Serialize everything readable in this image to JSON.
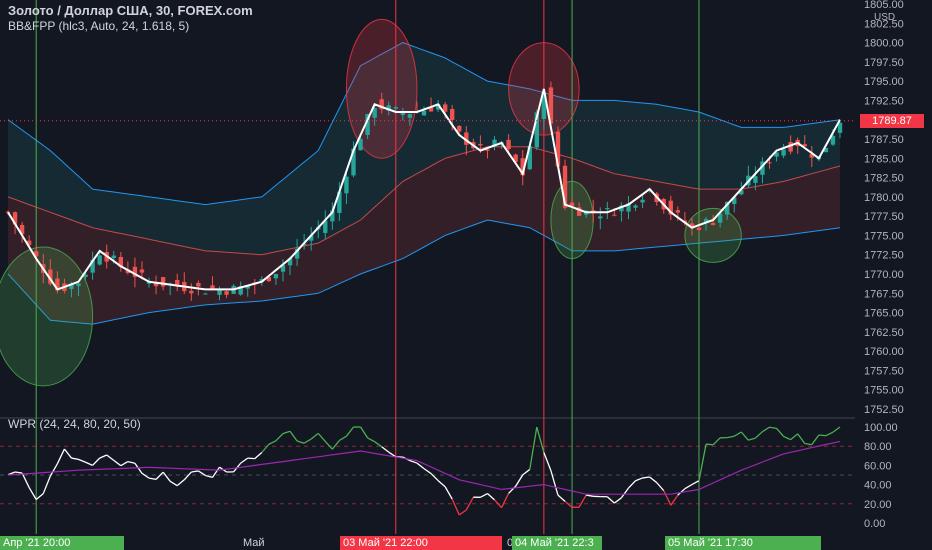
{
  "header": {
    "symbol_title": "Золото / Доллар США, 30, FOREX.com",
    "indicator_main": "BB&FPP (hlc3, Auto, 24, 1.618, 5)",
    "indicator_sub": "WPR (24, 24, 80, 20, 50)"
  },
  "price_axis": {
    "currency": "USD",
    "current_price": "1789.87"
  },
  "time_axis": {
    "labels": [
      {
        "text": "Апр '21  20:00",
        "style": "g"
      },
      {
        "text": "Май",
        "style": "n"
      },
      {
        "text": "03 Май '21   22:00",
        "style": "r"
      },
      {
        "text": "0",
        "style": "n"
      },
      {
        "text": "04 Май '21   22:3",
        "style": "g"
      },
      {
        "text": "05 Май '21    17:30",
        "style": "g"
      }
    ]
  },
  "colors": {
    "background": "#131722",
    "bull": "#26a69a",
    "bear": "#ef5350",
    "band": "#2196f3",
    "mid": "#ef5350",
    "hlc": "#ffffff",
    "wpr_ma": "#9c27b0"
  },
  "chart_data": [
    {
      "type": "candlestick",
      "title": "Золото / Доллар США, 30, FOREX.com",
      "ylabel": "USD",
      "ylim": [
        1752.5,
        1805.0
      ],
      "yticks": [
        1752.5,
        1755.0,
        1757.5,
        1760.0,
        1762.5,
        1765.0,
        1767.5,
        1770.0,
        1772.5,
        1775.0,
        1777.5,
        1780.0,
        1782.5,
        1785.0,
        1787.5,
        1790.0,
        1792.5,
        1795.0,
        1797.5,
        1800.0,
        1802.5,
        1805.0
      ],
      "ytick_labels": [
        "1752.50",
        "1755.00",
        "1757.50",
        "1760.00",
        "1762.50",
        "1765.00",
        "1767.50",
        "1770.00",
        "1772.50",
        "1775.00",
        "1777.50",
        "1780.00",
        "1782.50",
        "1785.00",
        "1787.50",
        "1790.00",
        "1792.50",
        "1795.00",
        "1797.50",
        "1800.00",
        "1802.50",
        "1805.00"
      ],
      "last_price": 1789.87,
      "close_anchors": [
        [
          0,
          1778
        ],
        [
          4,
          1772
        ],
        [
          7,
          1768
        ],
        [
          10,
          1769
        ],
        [
          13,
          1773
        ],
        [
          16,
          1771
        ],
        [
          20,
          1769
        ],
        [
          24,
          1768.5
        ],
        [
          28,
          1768
        ],
        [
          32,
          1768
        ],
        [
          36,
          1769
        ],
        [
          40,
          1772
        ],
        [
          43,
          1775
        ],
        [
          46,
          1778
        ],
        [
          49,
          1786
        ],
        [
          52,
          1792
        ],
        [
          55,
          1791
        ],
        [
          58,
          1791
        ],
        [
          61,
          1792
        ],
        [
          64,
          1788
        ],
        [
          67,
          1786
        ],
        [
          70,
          1787
        ],
        [
          73,
          1783
        ],
        [
          76,
          1794
        ],
        [
          79,
          1779
        ],
        [
          82,
          1778
        ],
        [
          85,
          1778
        ],
        [
          88,
          1779
        ],
        [
          91,
          1781
        ],
        [
          94,
          1778
        ],
        [
          97,
          1776
        ],
        [
          100,
          1777
        ],
        [
          103,
          1780
        ],
        [
          106,
          1783
        ],
        [
          109,
          1786
        ],
        [
          112,
          1787
        ],
        [
          115,
          1785
        ],
        [
          118,
          1790
        ]
      ],
      "bands_upper": [
        [
          0,
          1790
        ],
        [
          6,
          1786
        ],
        [
          12,
          1781
        ],
        [
          20,
          1780
        ],
        [
          28,
          1779
        ],
        [
          36,
          1780
        ],
        [
          44,
          1786
        ],
        [
          50,
          1797
        ],
        [
          56,
          1800
        ],
        [
          62,
          1798
        ],
        [
          68,
          1795
        ],
        [
          74,
          1794
        ],
        [
          80,
          1792.5
        ],
        [
          86,
          1792.5
        ],
        [
          92,
          1792
        ],
        [
          98,
          1791
        ],
        [
          104,
          1789
        ],
        [
          110,
          1789
        ],
        [
          118,
          1790
        ]
      ],
      "bands_middle": [
        [
          0,
          1780
        ],
        [
          6,
          1778
        ],
        [
          12,
          1776
        ],
        [
          20,
          1774.5
        ],
        [
          28,
          1773
        ],
        [
          36,
          1772.5
        ],
        [
          44,
          1774
        ],
        [
          50,
          1777
        ],
        [
          56,
          1782
        ],
        [
          62,
          1785
        ],
        [
          68,
          1786.5
        ],
        [
          74,
          1786.5
        ],
        [
          80,
          1785
        ],
        [
          86,
          1783
        ],
        [
          92,
          1782
        ],
        [
          98,
          1781
        ],
        [
          104,
          1781
        ],
        [
          110,
          1782
        ],
        [
          118,
          1784
        ]
      ],
      "bands_lower": [
        [
          0,
          1770
        ],
        [
          6,
          1764
        ],
        [
          12,
          1763.5
        ],
        [
          20,
          1765
        ],
        [
          28,
          1766
        ],
        [
          36,
          1766.5
        ],
        [
          44,
          1767.5
        ],
        [
          50,
          1770
        ],
        [
          56,
          1772
        ],
        [
          62,
          1775
        ],
        [
          68,
          1777
        ],
        [
          74,
          1776
        ],
        [
          80,
          1773
        ],
        [
          86,
          1773
        ],
        [
          92,
          1773.5
        ],
        [
          98,
          1774
        ],
        [
          104,
          1774.5
        ],
        [
          110,
          1775
        ],
        [
          118,
          1776
        ]
      ],
      "highlight_ellipses": [
        {
          "color": "green",
          "cx": 5,
          "cy": 1764.5,
          "rx": 7,
          "ry": 9
        },
        {
          "color": "red",
          "cx": 53,
          "cy": 1794,
          "rx": 5,
          "ry": 9
        },
        {
          "color": "red",
          "cx": 76,
          "cy": 1794,
          "rx": 5,
          "ry": 6
        },
        {
          "color": "green",
          "cx": 80,
          "cy": 1777,
          "rx": 3,
          "ry": 5
        },
        {
          "color": "green",
          "cx": 100,
          "cy": 1775,
          "rx": 4,
          "ry": 3.5
        }
      ],
      "vertical_markers": [
        {
          "x": 4,
          "color": "green"
        },
        {
          "x": 55,
          "color": "red"
        },
        {
          "x": 76,
          "color": "red"
        },
        {
          "x": 80,
          "color": "green"
        },
        {
          "x": 98,
          "color": "green"
        }
      ]
    },
    {
      "type": "line",
      "title": "WPR (24, 24, 80, 20, 50)",
      "ylim": [
        0,
        100
      ],
      "yticks": [
        0,
        20,
        40,
        60,
        80,
        100
      ],
      "ytick_labels": [
        "0.00",
        "20.00",
        "40.00",
        "60.00",
        "80.00",
        "100.00"
      ],
      "levels": [
        20,
        50,
        80
      ],
      "wpr_anchors": [
        [
          0,
          55
        ],
        [
          2,
          50
        ],
        [
          4,
          20
        ],
        [
          6,
          45
        ],
        [
          8,
          75
        ],
        [
          10,
          70
        ],
        [
          12,
          60
        ],
        [
          14,
          70
        ],
        [
          16,
          55
        ],
        [
          18,
          65
        ],
        [
          20,
          45
        ],
        [
          22,
          50
        ],
        [
          24,
          40
        ],
        [
          26,
          55
        ],
        [
          28,
          45
        ],
        [
          30,
          60
        ],
        [
          32,
          50
        ],
        [
          34,
          65
        ],
        [
          36,
          75
        ],
        [
          38,
          85
        ],
        [
          40,
          95
        ],
        [
          42,
          80
        ],
        [
          44,
          90
        ],
        [
          46,
          75
        ],
        [
          48,
          95
        ],
        [
          50,
          100
        ],
        [
          52,
          85
        ],
        [
          54,
          75
        ],
        [
          56,
          70
        ],
        [
          58,
          65
        ],
        [
          60,
          55
        ],
        [
          62,
          40
        ],
        [
          64,
          10
        ],
        [
          66,
          25
        ],
        [
          68,
          35
        ],
        [
          70,
          20
        ],
        [
          72,
          40
        ],
        [
          74,
          60
        ],
        [
          75,
          100
        ],
        [
          76,
          70
        ],
        [
          78,
          30
        ],
        [
          80,
          15
        ],
        [
          82,
          25
        ],
        [
          84,
          30
        ],
        [
          86,
          25
        ],
        [
          88,
          35
        ],
        [
          90,
          50
        ],
        [
          92,
          40
        ],
        [
          94,
          20
        ],
        [
          96,
          35
        ],
        [
          98,
          40
        ],
        [
          99,
          80
        ],
        [
          101,
          85
        ],
        [
          104,
          90
        ],
        [
          108,
          95
        ],
        [
          112,
          90
        ],
        [
          114,
          80
        ],
        [
          116,
          95
        ],
        [
          118,
          100
        ]
      ],
      "signal_anchors": [
        [
          0,
          50
        ],
        [
          10,
          55
        ],
        [
          20,
          58
        ],
        [
          30,
          55
        ],
        [
          40,
          65
        ],
        [
          50,
          75
        ],
        [
          58,
          65
        ],
        [
          64,
          45
        ],
        [
          70,
          35
        ],
        [
          76,
          40
        ],
        [
          82,
          30
        ],
        [
          88,
          30
        ],
        [
          94,
          30
        ],
        [
          98,
          35
        ],
        [
          104,
          55
        ],
        [
          110,
          72
        ],
        [
          118,
          85
        ]
      ]
    }
  ]
}
